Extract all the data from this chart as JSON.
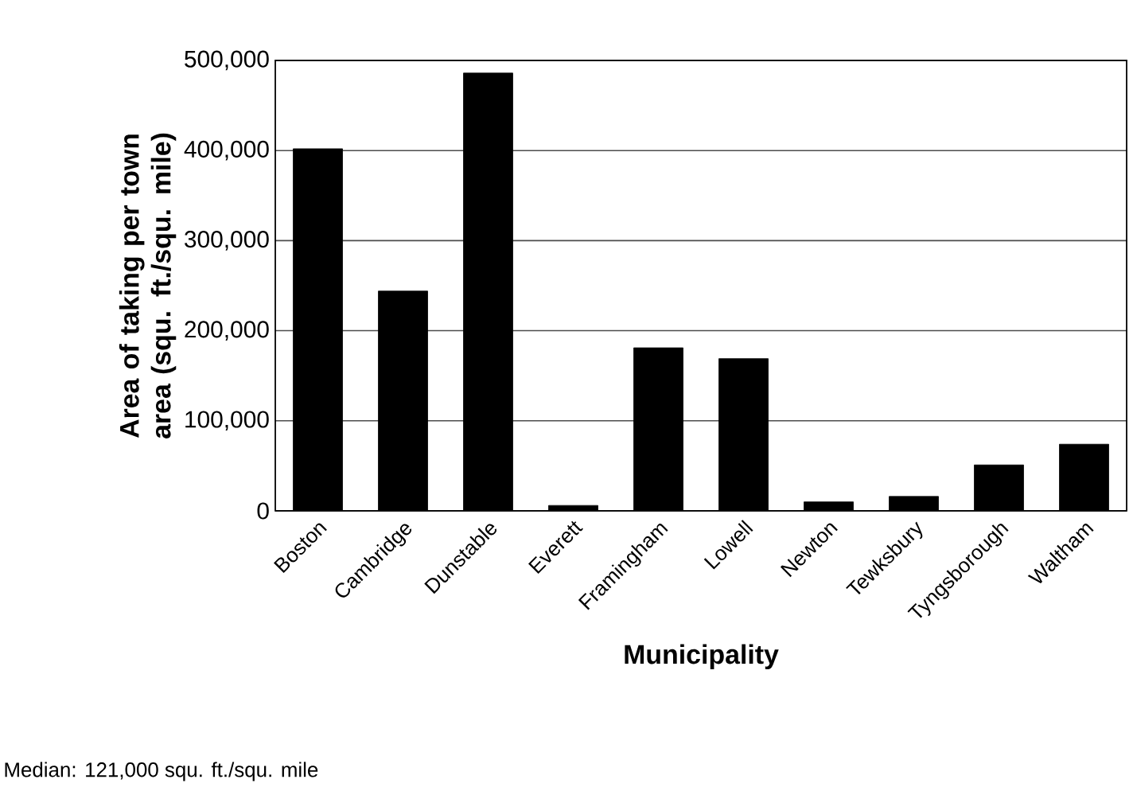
{
  "chart_data": {
    "type": "bar",
    "xlabel": "Municipality",
    "ylabel": "Area of taking per town area (squ. ft./squ. mile)",
    "categories": [
      "Boston",
      "Cambridge",
      "Dunstable",
      "Everett",
      "Framingham",
      "Lowell",
      "Newton",
      "Tewksbury",
      "Tyngsborough",
      "Waltham"
    ],
    "values": [
      402000,
      244000,
      486000,
      6000,
      181000,
      169000,
      10000,
      16000,
      51000,
      74000
    ],
    "color": "#000000",
    "ylim": [
      0,
      500000
    ],
    "yticks": [
      {
        "value": 0,
        "label": "0"
      },
      {
        "value": 100000,
        "label": "100,000"
      },
      {
        "value": 200000,
        "label": "200,000"
      },
      {
        "value": 300000,
        "label": "300,000"
      },
      {
        "value": 400000,
        "label": "400,000"
      },
      {
        "value": 500000,
        "label": "500,000"
      }
    ],
    "grid": "y",
    "annotations": [
      "Median: 121,000 squ. ft./squ. mile"
    ]
  }
}
